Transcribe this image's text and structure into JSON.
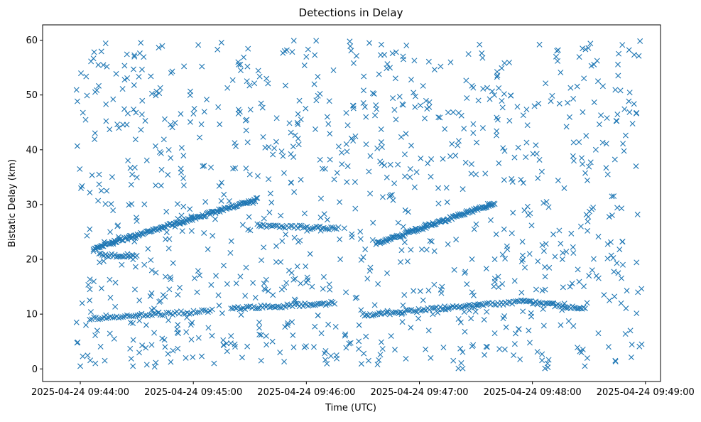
{
  "chart_data": {
    "type": "scatter",
    "title": "Detections in Delay",
    "xlabel": "Time (UTC)",
    "ylabel": "Bistatic Delay (km)",
    "x_unit": "time",
    "x_ticks": [
      "2025-04-24 09:44:00",
      "2025-04-24 09:45:00",
      "2025-04-24 09:46:00",
      "2025-04-24 09:47:00",
      "2025-04-24 09:48:00",
      "2025-04-24 09:49:00"
    ],
    "xlim": [
      "2025-04-24 09:43:40",
      "2025-04-24 09:49:08"
    ],
    "y_ticks": [
      0,
      10,
      20,
      30,
      40,
      50,
      60
    ],
    "ylim": [
      -2.3,
      62.8
    ],
    "grid": false,
    "marker": "x",
    "color": "#1f77b4",
    "series": [
      {
        "points": [
          [
            "09:44:05",
            25.5
          ],
          [
            "09:44:10",
            33.7
          ],
          [
            "09:44:14",
            32.5
          ],
          [
            "09:44:20",
            26.2
          ],
          [
            "09:44:25",
            21.0
          ],
          [
            "09:44:30",
            27.0
          ],
          [
            "09:44:34",
            19.0
          ],
          [
            "09:44:40",
            33.5
          ],
          [
            "09:44:47",
            22.0
          ],
          [
            "09:44:55",
            33.5
          ],
          [
            "09:45:05",
            37.0
          ],
          [
            "09:45:15",
            34.0
          ],
          [
            "09:45:30",
            35.5
          ],
          [
            "09:45:40",
            40.5
          ],
          [
            "09:45:52",
            34.0
          ],
          [
            "09:46:10",
            36.5
          ],
          [
            "09:46:22",
            37.0
          ],
          [
            "09:46:40",
            37.5
          ],
          [
            "09:46:55",
            35.0
          ],
          [
            "09:47:10",
            33.0
          ],
          [
            "09:47:30",
            35.5
          ],
          [
            "09:47:45",
            34.5
          ],
          [
            "09:48:05",
            36.0
          ],
          [
            "09:48:22",
            38.0
          ],
          [
            "09:48:40",
            35.5
          ],
          [
            "09:48:55",
            37.0
          ],
          [
            "09:43:58",
            8.5
          ],
          [
            "09:44:03",
            8.0
          ],
          [
            "09:44:09",
            7.0
          ],
          [
            "09:44:18",
            5.5
          ],
          [
            "09:44:35",
            8.0
          ],
          [
            "09:44:52",
            6.5
          ],
          [
            "09:45:08",
            7.5
          ],
          [
            "09:45:20",
            6.0
          ],
          [
            "09:45:35",
            7.5
          ],
          [
            "09:45:50",
            8.0
          ],
          [
            "09:46:08",
            6.5
          ],
          [
            "09:46:28",
            8.0
          ],
          [
            "09:46:45",
            6.0
          ],
          [
            "09:47:05",
            7.0
          ],
          [
            "09:47:22",
            8.5
          ],
          [
            "09:47:40",
            6.5
          ],
          [
            "09:47:58",
            7.0
          ],
          [
            "09:48:15",
            8.0
          ],
          [
            "09:48:35",
            6.5
          ],
          [
            "09:48:52",
            7.0
          ],
          [
            "09:44:01",
            12.0
          ],
          [
            "09:44:16",
            13.0
          ],
          [
            "09:44:29",
            14.5
          ],
          [
            "09:44:44",
            13.5
          ],
          [
            "09:45:02",
            14.0
          ],
          [
            "09:45:18",
            15.5
          ],
          [
            "09:45:33",
            13.0
          ],
          [
            "09:45:47",
            14.5
          ],
          [
            "09:46:03",
            15.0
          ],
          [
            "09:46:21",
            14.0
          ],
          [
            "09:46:38",
            15.5
          ],
          [
            "09:46:52",
            13.5
          ],
          [
            "09:47:12",
            15.0
          ],
          [
            "09:47:28",
            14.0
          ],
          [
            "09:47:44",
            15.5
          ],
          [
            "09:48:02",
            14.5
          ],
          [
            "09:48:20",
            15.0
          ],
          [
            "09:48:38",
            13.5
          ],
          [
            "09:48:56",
            14.0
          ],
          [
            "09:44:07",
            21.5
          ],
          [
            "09:44:22",
            19.0
          ],
          [
            "09:44:38",
            18.0
          ],
          [
            "09:45:12",
            17.0
          ],
          [
            "09:45:28",
            18.5
          ],
          [
            "09:45:44",
            19.5
          ],
          [
            "09:46:02",
            21.0
          ],
          [
            "09:46:18",
            20.0
          ],
          [
            "09:46:34",
            18.5
          ],
          [
            "09:46:50",
            19.5
          ],
          [
            "09:47:08",
            21.5
          ],
          [
            "09:47:24",
            17.5
          ],
          [
            "09:47:40",
            20.0
          ],
          [
            "09:47:56",
            18.5
          ],
          [
            "09:48:12",
            20.5
          ],
          [
            "09:48:30",
            17.0
          ],
          [
            "09:48:48",
            19.0
          ],
          [
            "09:44:00",
            0.5
          ],
          [
            "09:44:08",
            1.0
          ],
          [
            "09:44:13",
            1.5
          ],
          [
            "09:44:45",
            4.0
          ],
          [
            "09:44:56",
            2.0
          ],
          [
            "09:45:11",
            1.0
          ],
          [
            "09:45:22",
            4.5
          ],
          [
            "09:45:36",
            1.5
          ],
          [
            "09:45:46",
            3.0
          ],
          [
            "09:46:04",
            4.0
          ],
          [
            "09:46:16",
            2.5
          ],
          [
            "09:46:33",
            1.5
          ],
          [
            "09:46:47",
            3.5
          ],
          [
            "09:47:06",
            2.0
          ],
          [
            "09:47:18",
            1.5
          ],
          [
            "09:47:36",
            4.0
          ],
          [
            "09:47:50",
            2.5
          ],
          [
            "09:48:08",
            1.0
          ],
          [
            "09:48:26",
            3.0
          ],
          [
            "09:48:44",
            1.5
          ],
          [
            "09:48:58",
            4.5
          ]
        ]
      }
    ],
    "tracks": [
      {
        "start": "09:44:07",
        "end": "09:45:34",
        "y_start": 22.0,
        "y_end": 31.0,
        "n": 150
      },
      {
        "start": "09:45:34",
        "end": "09:46:17",
        "y_start": 26.2,
        "y_end": 25.6,
        "n": 45
      },
      {
        "start": "09:44:10",
        "end": "09:44:30",
        "y_start": 20.8,
        "y_end": 20.6,
        "n": 25
      },
      {
        "start": "09:46:37",
        "end": "09:47:40",
        "y_start": 22.8,
        "y_end": 30.3,
        "n": 120
      },
      {
        "start": "09:44:05",
        "end": "09:45:10",
        "y_start": 9.2,
        "y_end": 10.6,
        "n": 60
      },
      {
        "start": "09:45:20",
        "end": "09:46:15",
        "y_start": 11.0,
        "y_end": 12.0,
        "n": 60
      },
      {
        "start": "09:46:30",
        "end": "09:47:55",
        "y_start": 9.8,
        "y_end": 12.3,
        "n": 90
      },
      {
        "start": "09:47:55",
        "end": "09:48:28",
        "y_start": 12.3,
        "y_end": 11.0,
        "n": 40
      }
    ],
    "background": {
      "x_start": "09:43:58",
      "x_end": "09:48:58",
      "y_min": 0,
      "y_max": 60,
      "n": 900,
      "seed": 24
    }
  }
}
